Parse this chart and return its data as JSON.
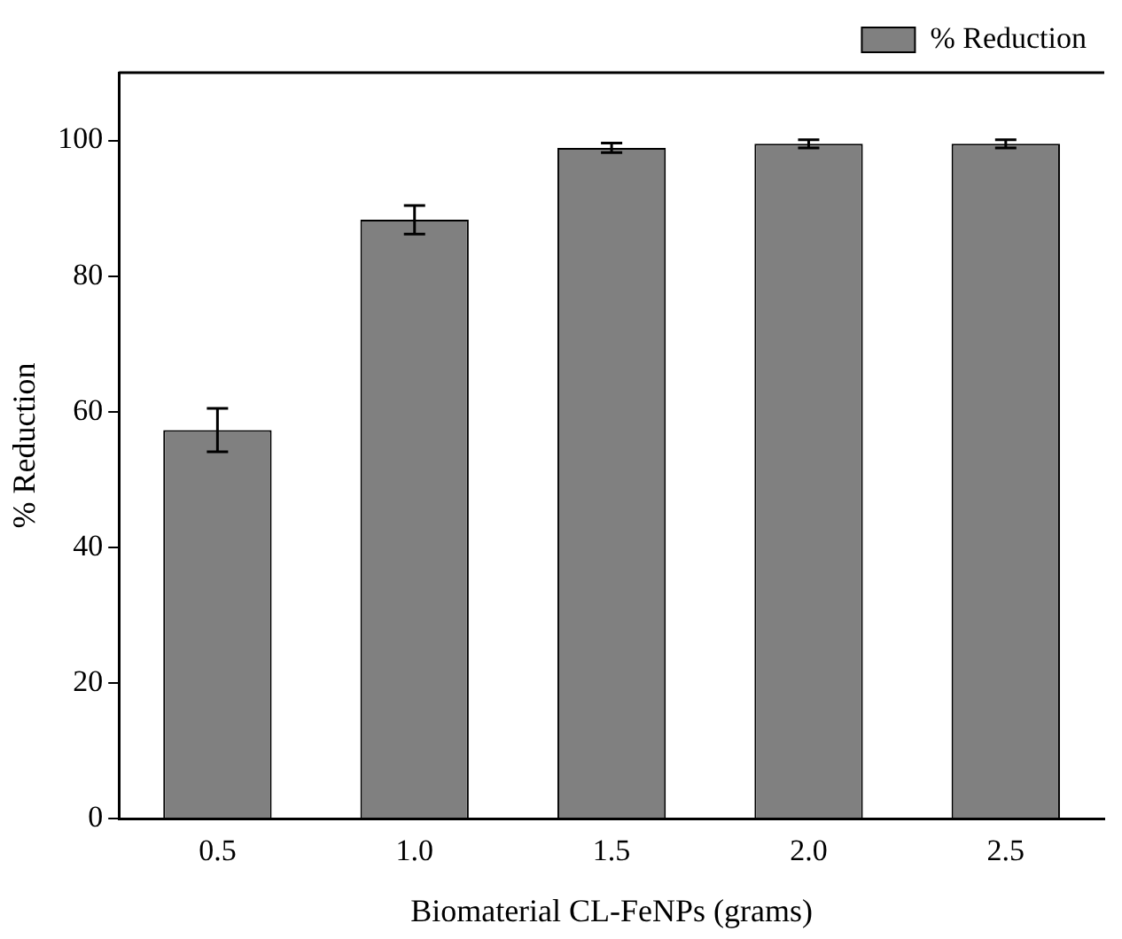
{
  "chart_data": {
    "type": "bar",
    "xlabel": "Biomaterial CL-FeNPs (grams)",
    "ylabel": "% Reduction",
    "categories": [
      "0.5",
      "1.0",
      "1.5",
      "2.0",
      "2.5"
    ],
    "series": [
      {
        "name": "% Reduction",
        "color": "#808080",
        "values": [
          57.3,
          88.3,
          98.9,
          99.5,
          99.5
        ],
        "errors": [
          3.2,
          2.1,
          0.7,
          0.6,
          0.6
        ]
      }
    ],
    "ylim": [
      0,
      110
    ],
    "yticks": [
      0,
      20,
      40,
      60,
      80,
      100
    ],
    "grid": false,
    "legend": "top right"
  }
}
